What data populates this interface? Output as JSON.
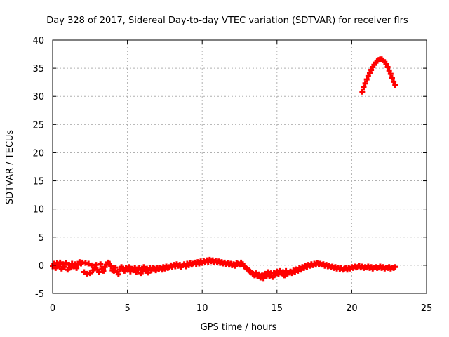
{
  "chart_data": {
    "type": "scatter",
    "title": "Day 328 of 2017, Sidereal Day-to-day VTEC variation (SDTVAR) for receiver flrs",
    "xlabel": "GPS time / hours",
    "ylabel": "SDTVAR / TECUs",
    "xlim": [
      0,
      25
    ],
    "ylim": [
      -5,
      40
    ],
    "xticks": [
      "0",
      "5",
      "10",
      "15",
      "20",
      "25"
    ],
    "yticks": [
      "-5",
      "0",
      "5",
      "10",
      "15",
      "20",
      "25",
      "30",
      "35",
      "40"
    ],
    "grid": true,
    "marker": "+",
    "colors": {
      "series": "#ff0000",
      "axis": "#000000",
      "grid": "#b0b0b0"
    },
    "series": [
      {
        "name": "SDTVAR",
        "points": [
          [
            0.0,
            -0.2
          ],
          [
            0.1,
            0.3
          ],
          [
            0.2,
            -0.5
          ],
          [
            0.3,
            0.4
          ],
          [
            0.4,
            -0.1
          ],
          [
            0.5,
            0.5
          ],
          [
            0.6,
            -0.6
          ],
          [
            0.7,
            0.2
          ],
          [
            0.8,
            -0.3
          ],
          [
            0.9,
            0.4
          ],
          [
            1.0,
            -0.8
          ],
          [
            1.1,
            0.1
          ],
          [
            1.2,
            -0.4
          ],
          [
            1.3,
            0.3
          ],
          [
            1.4,
            -0.2
          ],
          [
            1.5,
            0.2
          ],
          [
            1.6,
            -0.5
          ],
          [
            1.7,
            0.1
          ],
          [
            1.8,
            0.6
          ],
          [
            1.9,
            0.3
          ],
          [
            2.0,
            0.5
          ],
          [
            2.1,
            -1.2
          ],
          [
            2.2,
            0.4
          ],
          [
            2.3,
            -1.5
          ],
          [
            2.4,
            0.3
          ],
          [
            2.5,
            -1.4
          ],
          [
            2.6,
            0.0
          ],
          [
            2.7,
            -0.9
          ],
          [
            2.8,
            -0.5
          ],
          [
            2.9,
            0.1
          ],
          [
            3.0,
            -0.8
          ],
          [
            3.1,
            -1.2
          ],
          [
            3.2,
            0.2
          ],
          [
            3.3,
            -0.6
          ],
          [
            3.4,
            -1.0
          ],
          [
            3.5,
            -0.3
          ],
          [
            3.6,
            0.1
          ],
          [
            3.7,
            0.5
          ],
          [
            3.8,
            0.3
          ],
          [
            3.9,
            -0.2
          ],
          [
            4.0,
            -0.9
          ],
          [
            4.1,
            -1.0
          ],
          [
            4.2,
            -0.4
          ],
          [
            4.3,
            -1.2
          ],
          [
            4.4,
            -1.6
          ],
          [
            4.5,
            -0.8
          ],
          [
            4.6,
            -0.3
          ],
          [
            4.7,
            -0.6
          ],
          [
            4.8,
            -1.0
          ],
          [
            4.9,
            -0.5
          ],
          [
            5.0,
            -0.8
          ],
          [
            5.1,
            -0.3
          ],
          [
            5.2,
            -1.1
          ],
          [
            5.3,
            -0.6
          ],
          [
            5.4,
            -0.9
          ],
          [
            5.5,
            -0.4
          ],
          [
            5.6,
            -1.2
          ],
          [
            5.7,
            -0.7
          ],
          [
            5.8,
            -0.5
          ],
          [
            5.9,
            -1.4
          ],
          [
            6.0,
            -0.8
          ],
          [
            6.1,
            -0.3
          ],
          [
            6.2,
            -1.0
          ],
          [
            6.3,
            -0.6
          ],
          [
            6.4,
            -1.3
          ],
          [
            6.5,
            -0.5
          ],
          [
            6.6,
            -0.9
          ],
          [
            6.7,
            -0.4
          ],
          [
            6.8,
            -0.6
          ],
          [
            6.9,
            -0.9
          ],
          [
            7.0,
            -0.5
          ],
          [
            7.1,
            -0.7
          ],
          [
            7.2,
            -0.4
          ],
          [
            7.3,
            -0.8
          ],
          [
            7.4,
            -0.3
          ],
          [
            7.5,
            -0.6
          ],
          [
            7.6,
            -0.2
          ],
          [
            7.7,
            -0.5
          ],
          [
            7.8,
            -0.4
          ],
          [
            7.9,
            0.0
          ],
          [
            8.0,
            -0.3
          ],
          [
            8.1,
            0.1
          ],
          [
            8.2,
            -0.2
          ],
          [
            8.3,
            0.2
          ],
          [
            8.4,
            -0.1
          ],
          [
            8.5,
            0.1
          ],
          [
            8.6,
            -0.3
          ],
          [
            8.7,
            0.0
          ],
          [
            8.8,
            0.2
          ],
          [
            8.9,
            -0.2
          ],
          [
            9.0,
            0.3
          ],
          [
            9.1,
            0.0
          ],
          [
            9.2,
            0.4
          ],
          [
            9.3,
            0.1
          ],
          [
            9.4,
            0.3
          ],
          [
            9.5,
            0.5
          ],
          [
            9.6,
            0.2
          ],
          [
            9.7,
            0.6
          ],
          [
            9.8,
            0.3
          ],
          [
            9.9,
            0.7
          ],
          [
            10.0,
            0.4
          ],
          [
            10.1,
            0.8
          ],
          [
            10.2,
            0.5
          ],
          [
            10.3,
            0.9
          ],
          [
            10.4,
            0.6
          ],
          [
            10.5,
            1.0
          ],
          [
            10.6,
            0.7
          ],
          [
            10.7,
            0.9
          ],
          [
            10.8,
            0.6
          ],
          [
            10.9,
            0.8
          ],
          [
            11.0,
            0.5
          ],
          [
            11.1,
            0.7
          ],
          [
            11.2,
            0.4
          ],
          [
            11.3,
            0.6
          ],
          [
            11.4,
            0.3
          ],
          [
            11.5,
            0.5
          ],
          [
            11.6,
            0.2
          ],
          [
            11.7,
            0.4
          ],
          [
            11.8,
            0.1
          ],
          [
            11.9,
            0.3
          ],
          [
            12.0,
            0.0
          ],
          [
            12.1,
            0.2
          ],
          [
            12.2,
            -0.1
          ],
          [
            12.3,
            0.4
          ],
          [
            12.4,
            0.3
          ],
          [
            12.5,
            0.1
          ],
          [
            12.6,
            0.5
          ],
          [
            12.7,
            0.2
          ],
          [
            12.8,
            -0.2
          ],
          [
            12.9,
            -0.4
          ],
          [
            13.0,
            -0.6
          ],
          [
            13.1,
            -0.9
          ],
          [
            13.2,
            -1.1
          ],
          [
            13.3,
            -1.3
          ],
          [
            13.4,
            -1.5
          ],
          [
            13.5,
            -1.8
          ],
          [
            13.6,
            -1.4
          ],
          [
            13.7,
            -2.0
          ],
          [
            13.8,
            -1.6
          ],
          [
            13.9,
            -2.2
          ],
          [
            14.0,
            -1.8
          ],
          [
            14.1,
            -2.3
          ],
          [
            14.2,
            -1.5
          ],
          [
            14.3,
            -2.0
          ],
          [
            14.4,
            -1.2
          ],
          [
            14.5,
            -1.9
          ],
          [
            14.6,
            -1.4
          ],
          [
            14.7,
            -2.1
          ],
          [
            14.8,
            -1.3
          ],
          [
            14.9,
            -1.7
          ],
          [
            15.0,
            -1.1
          ],
          [
            15.1,
            -1.6
          ],
          [
            15.2,
            -1.0
          ],
          [
            15.3,
            -1.4
          ],
          [
            15.4,
            -1.2
          ],
          [
            15.5,
            -1.8
          ],
          [
            15.6,
            -1.0
          ],
          [
            15.7,
            -1.5
          ],
          [
            15.8,
            -1.3
          ],
          [
            15.9,
            -1.1
          ],
          [
            16.0,
            -1.4
          ],
          [
            16.1,
            -0.9
          ],
          [
            16.2,
            -1.2
          ],
          [
            16.3,
            -0.7
          ],
          [
            16.4,
            -1.0
          ],
          [
            16.5,
            -0.5
          ],
          [
            16.6,
            -0.8
          ],
          [
            16.7,
            -0.3
          ],
          [
            16.8,
            -0.5
          ],
          [
            16.9,
            -0.1
          ],
          [
            17.0,
            -0.3
          ],
          [
            17.1,
            0.1
          ],
          [
            17.2,
            -0.1
          ],
          [
            17.3,
            0.2
          ],
          [
            17.4,
            0.0
          ],
          [
            17.5,
            0.3
          ],
          [
            17.6,
            0.1
          ],
          [
            17.7,
            0.4
          ],
          [
            17.8,
            0.2
          ],
          [
            17.9,
            0.3
          ],
          [
            18.0,
            0.1
          ],
          [
            18.1,
            0.2
          ],
          [
            18.2,
            -0.1
          ],
          [
            18.3,
            0.1
          ],
          [
            18.4,
            -0.2
          ],
          [
            18.5,
            -0.1
          ],
          [
            18.6,
            -0.3
          ],
          [
            18.7,
            -0.2
          ],
          [
            18.8,
            -0.5
          ],
          [
            18.9,
            -0.3
          ],
          [
            19.0,
            -0.6
          ],
          [
            19.1,
            -0.4
          ],
          [
            19.2,
            -0.7
          ],
          [
            19.3,
            -0.5
          ],
          [
            19.4,
            -0.8
          ],
          [
            19.5,
            -0.6
          ],
          [
            19.6,
            -0.5
          ],
          [
            19.7,
            -0.8
          ],
          [
            19.8,
            -0.4
          ],
          [
            19.9,
            -0.6
          ],
          [
            20.0,
            -0.3
          ],
          [
            20.1,
            -0.5
          ],
          [
            20.2,
            -0.2
          ],
          [
            20.3,
            -0.4
          ],
          [
            20.4,
            -0.3
          ],
          [
            20.5,
            -0.1
          ],
          [
            20.6,
            -0.4
          ],
          [
            20.7,
            -0.2
          ],
          [
            20.8,
            -0.5
          ],
          [
            20.9,
            -0.3
          ],
          [
            21.0,
            -0.4
          ],
          [
            21.1,
            -0.2
          ],
          [
            21.2,
            -0.5
          ],
          [
            21.3,
            -0.3
          ],
          [
            21.4,
            -0.6
          ],
          [
            21.5,
            -0.4
          ],
          [
            21.6,
            -0.3
          ],
          [
            21.7,
            -0.5
          ],
          [
            21.8,
            -0.4
          ],
          [
            21.9,
            -0.2
          ],
          [
            22.0,
            -0.5
          ],
          [
            22.1,
            -0.3
          ],
          [
            22.2,
            -0.6
          ],
          [
            22.3,
            -0.4
          ],
          [
            22.4,
            -0.5
          ],
          [
            22.5,
            -0.3
          ],
          [
            22.6,
            -0.6
          ],
          [
            22.7,
            -0.4
          ],
          [
            22.8,
            -0.5
          ],
          [
            22.9,
            -0.3
          ],
          [
            20.7,
            30.8
          ],
          [
            20.8,
            31.6
          ],
          [
            20.9,
            32.3
          ],
          [
            21.0,
            33.0
          ],
          [
            21.1,
            33.6
          ],
          [
            21.2,
            34.2
          ],
          [
            21.3,
            34.7
          ],
          [
            21.4,
            35.2
          ],
          [
            21.5,
            35.6
          ],
          [
            21.6,
            36.0
          ],
          [
            21.7,
            36.3
          ],
          [
            21.8,
            36.5
          ],
          [
            21.9,
            36.6
          ],
          [
            22.0,
            36.6
          ],
          [
            22.1,
            36.4
          ],
          [
            22.2,
            36.1
          ],
          [
            22.3,
            35.7
          ],
          [
            22.4,
            35.2
          ],
          [
            22.5,
            34.6
          ],
          [
            22.6,
            34.0
          ],
          [
            22.7,
            33.3
          ],
          [
            22.8,
            32.6
          ],
          [
            22.9,
            32.0
          ]
        ]
      }
    ]
  }
}
